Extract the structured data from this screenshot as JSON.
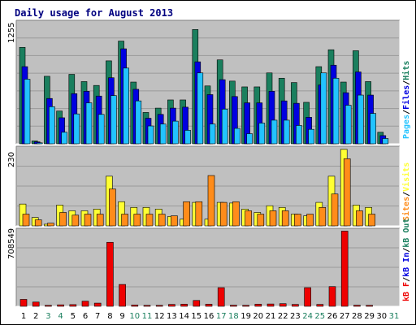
{
  "title": "Daily usage for August 2013",
  "colors": {
    "hits": "#1a7f5e",
    "files": "#0000e0",
    "pages": "#22c3ff",
    "visits": "#ffff33",
    "sites": "#ff8c1a",
    "kbf": "#ee0000",
    "panel_bg": "#c0c0c0",
    "page_bg": "#ffffff",
    "title": "#000080",
    "day_weekday": "#000000",
    "day_weekend": "#1a7f5e"
  },
  "chart_data": [
    {
      "type": "bar",
      "panel": "top",
      "ymax_label": "1255",
      "ylim": [
        0,
        1255
      ],
      "legend": [
        "Pages",
        "Files",
        "Hits"
      ],
      "series": [
        {
          "name": "Hits",
          "values": [
            1000,
            30,
            700,
            340,
            720,
            645,
            605,
            860,
            1065,
            640,
            325,
            370,
            455,
            455,
            1185,
            600,
            870,
            650,
            590,
            590,
            735,
            680,
            635,
            430,
            800,
            975,
            640,
            965,
            645,
            120,
            0
          ]
        },
        {
          "name": "Files",
          "values": [
            800,
            20,
            470,
            270,
            520,
            545,
            495,
            685,
            985,
            565,
            265,
            305,
            370,
            380,
            850,
            510,
            665,
            490,
            425,
            425,
            545,
            445,
            420,
            275,
            610,
            815,
            530,
            745,
            505,
            85,
            0
          ]
        },
        {
          "name": "Pages",
          "values": [
            670,
            10,
            385,
            120,
            310,
            425,
            305,
            500,
            785,
            445,
            185,
            205,
            235,
            140,
            735,
            205,
            360,
            160,
            105,
            215,
            245,
            245,
            190,
            150,
            735,
            680,
            400,
            505,
            315,
            55,
            0
          ]
        }
      ]
    },
    {
      "type": "bar",
      "panel": "middle",
      "ymax_label": "230",
      "ylim": [
        0,
        230
      ],
      "legend": [
        "Sites",
        "Visits"
      ],
      "series": [
        {
          "name": "Visits",
          "values": [
            65,
            25,
            5,
            62,
            45,
            45,
            50,
            148,
            72,
            55,
            55,
            50,
            28,
            20,
            70,
            20,
            70,
            68,
            50,
            40,
            60,
            55,
            35,
            30,
            70,
            148,
            228,
            62,
            55,
            0,
            0
          ]
        },
        {
          "name": "Sites",
          "values": [
            35,
            18,
            8,
            40,
            32,
            35,
            35,
            110,
            35,
            35,
            35,
            35,
            30,
            72,
            72,
            150,
            70,
            72,
            45,
            35,
            45,
            45,
            35,
            35,
            55,
            95,
            200,
            45,
            35,
            0,
            0
          ]
        }
      ]
    },
    {
      "type": "bar",
      "panel": "bottom",
      "ymax_label": "708549",
      "ylim": [
        0,
        708549
      ],
      "legend": [
        "kB F",
        "kB In",
        "kB Out"
      ],
      "series": [
        {
          "name": "kB F",
          "values": [
            65000,
            40000,
            9000,
            14000,
            16000,
            48000,
            30000,
            600000,
            205000,
            12000,
            9000,
            9000,
            18000,
            20000,
            55000,
            20000,
            175000,
            10000,
            9000,
            20000,
            22000,
            25000,
            18000,
            175000,
            18000,
            185000,
            705000,
            10000,
            9000,
            0,
            0
          ]
        }
      ]
    }
  ],
  "days": [
    "1",
    "2",
    "3",
    "4",
    "5",
    "6",
    "7",
    "8",
    "9",
    "10",
    "11",
    "12",
    "13",
    "14",
    "15",
    "16",
    "17",
    "18",
    "19",
    "20",
    "21",
    "22",
    "23",
    "24",
    "25",
    "26",
    "27",
    "28",
    "29",
    "30",
    "31"
  ],
  "weekend_days": [
    "3",
    "4",
    "10",
    "11",
    "17",
    "18",
    "24",
    "25",
    "31"
  ]
}
